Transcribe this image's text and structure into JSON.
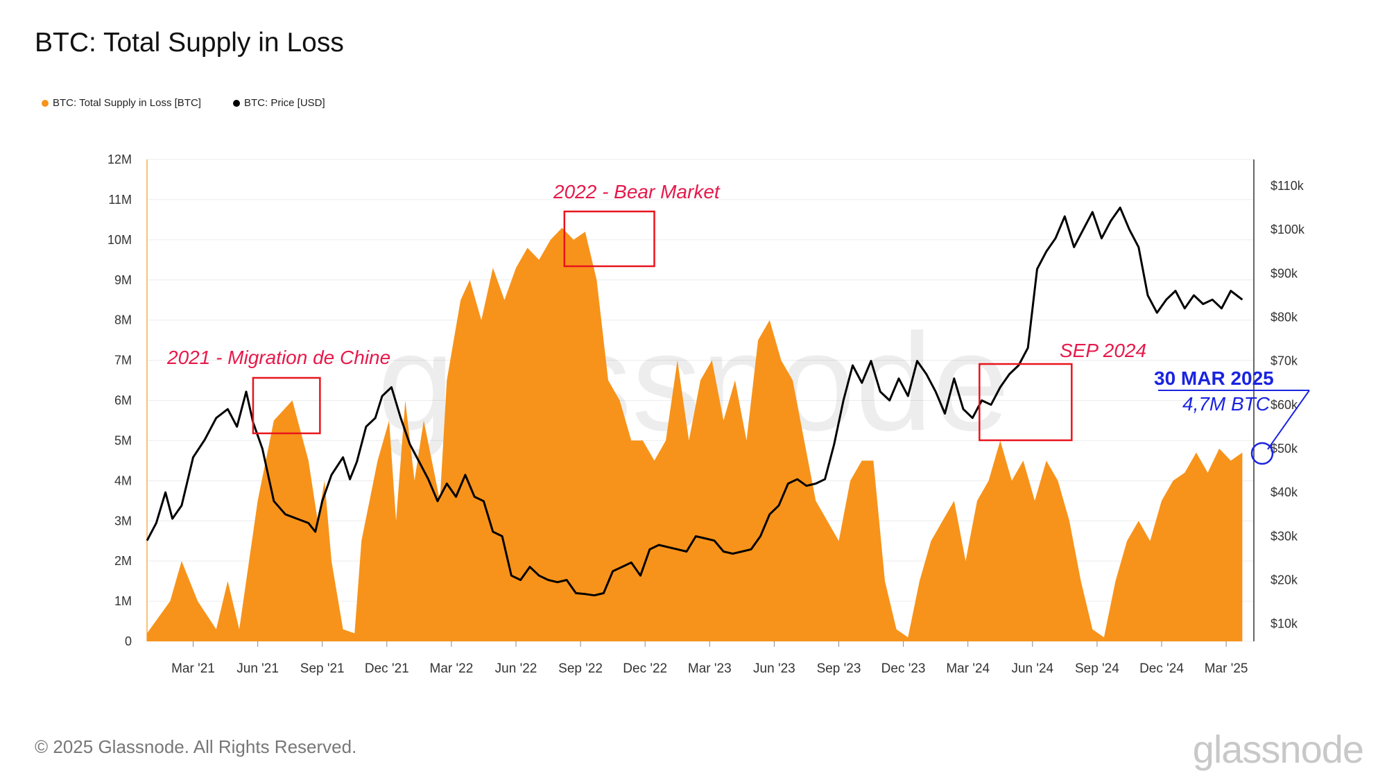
{
  "title": "BTC: Total Supply in Loss",
  "legend": [
    {
      "label": "BTC: Total Supply in Loss [BTC]",
      "color": "#f7931a"
    },
    {
      "label": "BTC: Price [USD]",
      "color": "#000000"
    }
  ],
  "footer": "© 2025 Glassnode. All Rights Reserved.",
  "brand": "glassnode",
  "watermark": "glassnode",
  "chart_data": {
    "type": "area",
    "title": "BTC: Total Supply in Loss",
    "x_ticks": [
      "Mar '21",
      "Jun '21",
      "Sep '21",
      "Dec '21",
      "Mar '22",
      "Jun '22",
      "Sep '22",
      "Dec '22",
      "Mar '23",
      "Jun '23",
      "Sep '23",
      "Dec '23",
      "Mar '24",
      "Jun '24",
      "Sep '24",
      "Dec '24",
      "Mar '25"
    ],
    "x_range": [
      "2021-01-01",
      "2025-03-30"
    ],
    "left_axis": {
      "min": 0,
      "max": 12000000,
      "ticks": [
        "0",
        "1M",
        "2M",
        "3M",
        "4M",
        "5M",
        "6M",
        "7M",
        "8M",
        "9M",
        "10M",
        "11M",
        "12M"
      ]
    },
    "right_axis": {
      "min": 6000,
      "max": 116000,
      "ticks": [
        "$10k",
        "$20k",
        "$30k",
        "$40k",
        "$50k",
        "$60k",
        "$70k",
        "$80k",
        "$90k",
        "$100k",
        "$110k"
      ]
    },
    "series": [
      {
        "name": "BTC: Total Supply in Loss [BTC]",
        "color": "#f7931a",
        "axis": "left",
        "points": [
          [
            0,
            0.2
          ],
          [
            1,
            1.0
          ],
          [
            1.5,
            2.0
          ],
          [
            2.2,
            1.0
          ],
          [
            3,
            0.3
          ],
          [
            3.5,
            1.5
          ],
          [
            4,
            0.3
          ],
          [
            4.8,
            3.5
          ],
          [
            5.5,
            5.5
          ],
          [
            6.3,
            6.0
          ],
          [
            7,
            4.5
          ],
          [
            7.4,
            3.0
          ],
          [
            7.7,
            4.0
          ],
          [
            8,
            2.0
          ],
          [
            8.5,
            0.3
          ],
          [
            9,
            0.2
          ],
          [
            9.3,
            2.5
          ],
          [
            10,
            4.5
          ],
          [
            10.5,
            5.5
          ],
          [
            10.8,
            3.0
          ],
          [
            11.2,
            6.0
          ],
          [
            11.6,
            4.0
          ],
          [
            12,
            5.5
          ],
          [
            12.7,
            3.5
          ],
          [
            13,
            6.5
          ],
          [
            13.6,
            8.5
          ],
          [
            14,
            9.0
          ],
          [
            14.5,
            8.0
          ],
          [
            15,
            9.3
          ],
          [
            15.5,
            8.5
          ],
          [
            16,
            9.3
          ],
          [
            16.5,
            9.8
          ],
          [
            17,
            9.5
          ],
          [
            17.5,
            10.0
          ],
          [
            18,
            10.3
          ],
          [
            18.5,
            10.0
          ],
          [
            19,
            10.2
          ],
          [
            19.5,
            9.0
          ],
          [
            20,
            6.5
          ],
          [
            20.5,
            6.0
          ],
          [
            21,
            5.0
          ],
          [
            21.5,
            5.0
          ],
          [
            22,
            4.5
          ],
          [
            22.5,
            5.0
          ],
          [
            23,
            7.0
          ],
          [
            23.5,
            5.0
          ],
          [
            24,
            6.5
          ],
          [
            24.5,
            7.0
          ],
          [
            25,
            5.5
          ],
          [
            25.5,
            6.5
          ],
          [
            26,
            5.0
          ],
          [
            26.5,
            7.5
          ],
          [
            27,
            8.0
          ],
          [
            27.5,
            7.0
          ],
          [
            28,
            6.5
          ],
          [
            28.5,
            5.0
          ],
          [
            29,
            3.5
          ],
          [
            29.5,
            3.0
          ],
          [
            30,
            2.5
          ],
          [
            30.5,
            4.0
          ],
          [
            31,
            4.5
          ],
          [
            31.5,
            4.5
          ],
          [
            32,
            1.5
          ],
          [
            32.5,
            0.3
          ],
          [
            33,
            0.1
          ],
          [
            33.5,
            1.5
          ],
          [
            34,
            2.5
          ],
          [
            34.5,
            3.0
          ],
          [
            35,
            3.5
          ],
          [
            35.5,
            2.0
          ],
          [
            36,
            3.5
          ],
          [
            36.5,
            4.0
          ],
          [
            37,
            5.0
          ],
          [
            37.5,
            4.0
          ],
          [
            38,
            4.5
          ],
          [
            38.5,
            3.5
          ],
          [
            39,
            4.5
          ],
          [
            39.5,
            4.0
          ],
          [
            40,
            3.0
          ],
          [
            40.5,
            1.5
          ],
          [
            41,
            0.3
          ],
          [
            41.5,
            0.1
          ],
          [
            42,
            1.5
          ],
          [
            42.5,
            2.5
          ],
          [
            43,
            3.0
          ],
          [
            43.5,
            2.5
          ],
          [
            44,
            3.5
          ],
          [
            44.5,
            4.0
          ],
          [
            45,
            4.2
          ],
          [
            45.5,
            4.7
          ],
          [
            46,
            4.2
          ],
          [
            46.5,
            4.8
          ],
          [
            47,
            4.5
          ],
          [
            47.5,
            4.7
          ]
        ]
      },
      {
        "name": "BTC: Price [USD]",
        "color": "#000000",
        "axis": "right",
        "points": [
          [
            0,
            29000
          ],
          [
            0.4,
            33000
          ],
          [
            0.8,
            40000
          ],
          [
            1.1,
            34000
          ],
          [
            1.5,
            37000
          ],
          [
            2,
            48000
          ],
          [
            2.5,
            52000
          ],
          [
            3,
            57000
          ],
          [
            3.5,
            59000
          ],
          [
            3.9,
            55000
          ],
          [
            4.3,
            63000
          ],
          [
            4.6,
            56000
          ],
          [
            5,
            50000
          ],
          [
            5.5,
            38000
          ],
          [
            6,
            35000
          ],
          [
            6.5,
            34000
          ],
          [
            7,
            33000
          ],
          [
            7.3,
            31000
          ],
          [
            7.6,
            38000
          ],
          [
            8,
            44000
          ],
          [
            8.5,
            48000
          ],
          [
            8.8,
            43000
          ],
          [
            9.1,
            47000
          ],
          [
            9.5,
            55000
          ],
          [
            9.9,
            57000
          ],
          [
            10.2,
            62000
          ],
          [
            10.6,
            64000
          ],
          [
            11,
            57000
          ],
          [
            11.4,
            51000
          ],
          [
            11.8,
            47000
          ],
          [
            12.2,
            43000
          ],
          [
            12.6,
            38000
          ],
          [
            13,
            42000
          ],
          [
            13.4,
            39000
          ],
          [
            13.8,
            44000
          ],
          [
            14.2,
            39000
          ],
          [
            14.6,
            38000
          ],
          [
            15,
            31000
          ],
          [
            15.4,
            30000
          ],
          [
            15.8,
            21000
          ],
          [
            16.2,
            20000
          ],
          [
            16.6,
            23000
          ],
          [
            17,
            21000
          ],
          [
            17.4,
            20000
          ],
          [
            17.8,
            19500
          ],
          [
            18.2,
            20000
          ],
          [
            18.6,
            17000
          ],
          [
            19,
            16800
          ],
          [
            19.4,
            16500
          ],
          [
            19.8,
            17000
          ],
          [
            20.2,
            22000
          ],
          [
            20.6,
            23000
          ],
          [
            21,
            24000
          ],
          [
            21.4,
            21000
          ],
          [
            21.8,
            27000
          ],
          [
            22.2,
            28000
          ],
          [
            22.6,
            27500
          ],
          [
            23,
            27000
          ],
          [
            23.4,
            26500
          ],
          [
            23.8,
            30000
          ],
          [
            24.2,
            29500
          ],
          [
            24.6,
            29000
          ],
          [
            25,
            26500
          ],
          [
            25.4,
            26000
          ],
          [
            25.8,
            26500
          ],
          [
            26.2,
            27000
          ],
          [
            26.6,
            30000
          ],
          [
            27,
            35000
          ],
          [
            27.4,
            37000
          ],
          [
            27.8,
            42000
          ],
          [
            28.2,
            43000
          ],
          [
            28.6,
            41500
          ],
          [
            29,
            42000
          ],
          [
            29.4,
            43000
          ],
          [
            29.8,
            51000
          ],
          [
            30.2,
            61000
          ],
          [
            30.6,
            69000
          ],
          [
            31,
            65000
          ],
          [
            31.4,
            70000
          ],
          [
            31.8,
            63000
          ],
          [
            32.2,
            61000
          ],
          [
            32.6,
            66000
          ],
          [
            33,
            62000
          ],
          [
            33.4,
            70000
          ],
          [
            33.8,
            67000
          ],
          [
            34.2,
            63000
          ],
          [
            34.6,
            58000
          ],
          [
            35,
            66000
          ],
          [
            35.4,
            59000
          ],
          [
            35.8,
            57000
          ],
          [
            36.2,
            61000
          ],
          [
            36.6,
            60000
          ],
          [
            37,
            64000
          ],
          [
            37.4,
            67000
          ],
          [
            37.8,
            69000
          ],
          [
            38.2,
            73000
          ],
          [
            38.6,
            91000
          ],
          [
            39,
            95000
          ],
          [
            39.4,
            98000
          ],
          [
            39.8,
            103000
          ],
          [
            40.2,
            96000
          ],
          [
            40.6,
            100000
          ],
          [
            41,
            104000
          ],
          [
            41.4,
            98000
          ],
          [
            41.8,
            102000
          ],
          [
            42.2,
            105000
          ],
          [
            42.6,
            100000
          ],
          [
            43,
            96000
          ],
          [
            43.4,
            85000
          ],
          [
            43.8,
            81000
          ],
          [
            44.2,
            84000
          ],
          [
            44.6,
            86000
          ],
          [
            45,
            82000
          ],
          [
            45.4,
            85000
          ],
          [
            45.8,
            83000
          ],
          [
            46.2,
            84000
          ],
          [
            46.6,
            82000
          ],
          [
            47,
            86000
          ],
          [
            47.5,
            84000
          ]
        ]
      }
    ],
    "annotations": [
      {
        "label": "2021 - Migration de Chine",
        "color": "#e6194b"
      },
      {
        "label": "2022 - Bear Market",
        "color": "#e6194b"
      },
      {
        "label": "SEP 2024",
        "color": "#e6194b"
      },
      {
        "label": "30 MAR 2025",
        "color": "#1a24e0"
      },
      {
        "label": "4,7M BTC",
        "color": "#1a24e0"
      }
    ]
  }
}
